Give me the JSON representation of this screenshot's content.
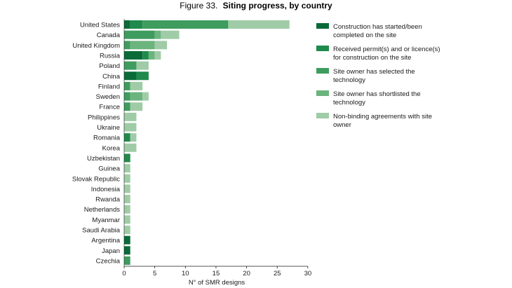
{
  "chart_data": {
    "type": "bar",
    "orientation": "horizontal",
    "stacked": true,
    "title_prefix": "Figure 33.",
    "title_main": "Siting progress, by country",
    "xlabel": "N° of SMR designs",
    "ylabel": "",
    "xlim": [
      0,
      30
    ],
    "xticks": [
      "0",
      "5",
      "10",
      "15",
      "20",
      "25",
      "30"
    ],
    "grid": false,
    "legend_position": "right",
    "categories": [
      "United States",
      "Canada",
      "United Kingdom",
      "Russia",
      "Poland",
      "China",
      "Finland",
      "Sweden",
      "France",
      "Philippines",
      "Ukraine",
      "Romania",
      "Korea",
      "Uzbekistan",
      "Guinea",
      "Slovak Republic",
      "Indonesia",
      "Rwanda",
      "Netherlands",
      "Myanmar",
      "Saudi Arabia",
      "Argentina",
      "Japan",
      "Czechia"
    ],
    "series": [
      {
        "name": "Construction has started/been completed on the site",
        "legend_lines": [
          "Construction has started/been",
          "completed on the site"
        ],
        "color": "#0a6b38",
        "values": [
          1,
          0,
          0,
          3,
          0,
          2,
          0,
          0,
          0,
          0,
          0,
          0,
          0,
          0,
          0,
          0,
          0,
          0,
          0,
          0,
          0,
          1,
          1,
          0
        ]
      },
      {
        "name": "Received permit(s) and or licence(s) for construction on the site",
        "legend_lines": [
          "Received permit(s) and or licence(s)",
          "for construction on the site"
        ],
        "color": "#1f8a4c",
        "values": [
          2,
          0,
          0,
          1,
          0,
          2,
          0,
          0,
          0,
          0,
          0,
          1,
          0,
          1,
          0,
          0,
          0,
          0,
          0,
          0,
          0,
          0,
          0,
          0
        ]
      },
      {
        "name": "Site owner has selected the technology",
        "legend_lines": [
          "Site owner has selected the",
          "technology"
        ],
        "color": "#3e9c5e",
        "values": [
          14,
          5,
          1,
          0,
          2,
          0,
          1,
          1,
          1,
          0,
          0,
          0,
          0,
          0,
          0,
          0,
          0,
          0,
          0,
          0,
          0,
          0,
          0,
          1
        ]
      },
      {
        "name": "Site owner has shortlisted the technology",
        "legend_lines": [
          "Site owner has shortlisted the",
          "technology"
        ],
        "color": "#6cb47e",
        "values": [
          0,
          1,
          4,
          1,
          0,
          0,
          0,
          2,
          0,
          0,
          0,
          0,
          0,
          0,
          0,
          0,
          0,
          0,
          0,
          0,
          0,
          0,
          0,
          0
        ]
      },
      {
        "name": "Non-binding agreements with site owner",
        "legend_lines": [
          "Non-binding agreements with site",
          "owner"
        ],
        "color": "#9fcca6",
        "values": [
          10,
          3,
          2,
          1,
          2,
          0,
          2,
          1,
          2,
          2,
          2,
          1,
          2,
          0,
          1,
          1,
          1,
          1,
          1,
          1,
          1,
          0,
          0,
          0
        ]
      }
    ]
  }
}
